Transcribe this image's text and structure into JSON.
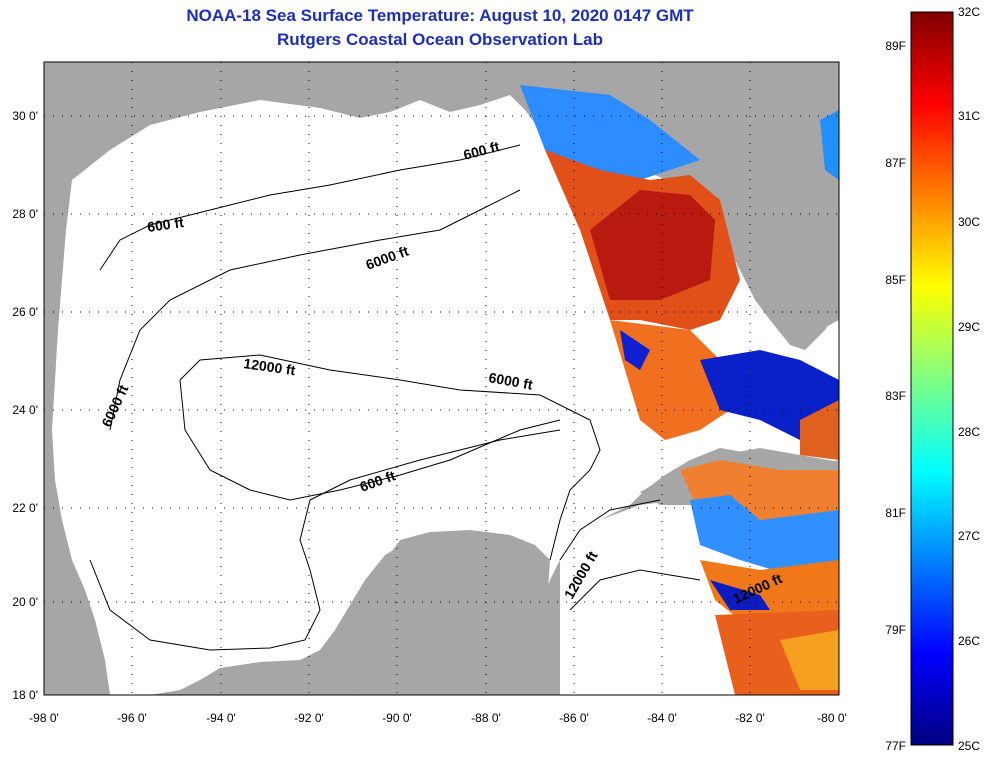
{
  "title": {
    "line1": "NOAA-18 Sea Surface Temperature:  August 10, 2020 0147 GMT",
    "line2": "Rutgers Coastal Ocean Observation Lab"
  },
  "map": {
    "lon_ticks": [
      "-98 0'",
      "-96 0'",
      "-94 0'",
      "-92 0'",
      "-90 0'",
      "-88 0'",
      "-86 0'",
      "-84 0'",
      "-82 0'",
      "-80 0'"
    ],
    "lat_ticks": [
      "30 0'",
      "28 0'",
      "26 0'",
      "24 0'",
      "22 0'",
      "20 0'",
      "18 0'"
    ],
    "contour_labels": [
      "600 ft",
      "600 ft",
      "6000 ft",
      "12000 ft",
      "6000 ft",
      "6000 ft",
      "600 ft",
      "12000 ft",
      "12000 ft"
    ],
    "colors": {
      "land": "#a6a6a6",
      "ocean": "#ffffff",
      "grid": "#000000"
    }
  },
  "colorbar": {
    "celsius": [
      "32C",
      "31C",
      "30C",
      "29C",
      "28C",
      "27C",
      "26C",
      "25C"
    ],
    "fahrenheit": [
      "89F",
      "87F",
      "85F",
      "83F",
      "81F",
      "79F",
      "77F"
    ],
    "colormap": [
      "#000080",
      "#0000ff",
      "#0080ff",
      "#00ffff",
      "#80ff80",
      "#ffff00",
      "#ff8000",
      "#ff0000",
      "#800000"
    ]
  }
}
